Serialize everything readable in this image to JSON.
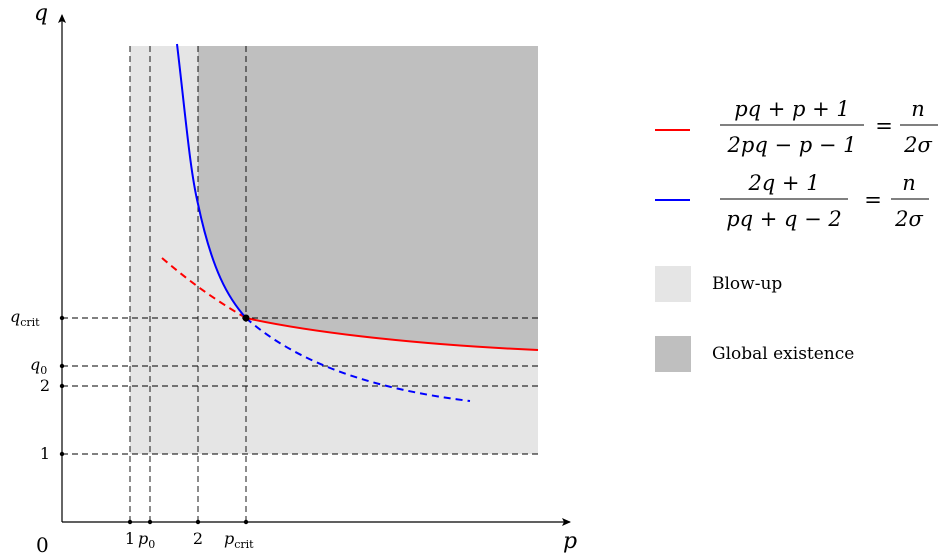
{
  "axes": {
    "x_label": "p",
    "y_label": "q",
    "origin_label": "0",
    "x_ticks": [
      {
        "main": "1",
        "sub": ""
      },
      {
        "main": "p",
        "sub": "0"
      },
      {
        "main": "2",
        "sub": ""
      },
      {
        "main": "p",
        "sub": "crit"
      }
    ],
    "y_ticks": [
      {
        "main": "q",
        "sub": "crit"
      },
      {
        "main": "q",
        "sub": "0"
      },
      {
        "main": "2",
        "sub": ""
      },
      {
        "main": "1",
        "sub": ""
      }
    ]
  },
  "legend": {
    "red_curve": {
      "color": "#ff0000",
      "numerator": "pq + p + 1",
      "denominator": "2pq − p − 1",
      "rhs_numerator": "n",
      "rhs_denominator": "2σ",
      "equals": "="
    },
    "blue_curve": {
      "color": "#0000ff",
      "numerator": "2q + 1",
      "denominator": "pq + q − 2",
      "rhs_numerator": "n",
      "rhs_denominator": "2σ",
      "equals": "="
    },
    "blow_up": {
      "label": "Blow-up",
      "color": "#e5e5e5"
    },
    "global_existence": {
      "label": "Global existence",
      "color": "#bfbfbf"
    }
  }
}
